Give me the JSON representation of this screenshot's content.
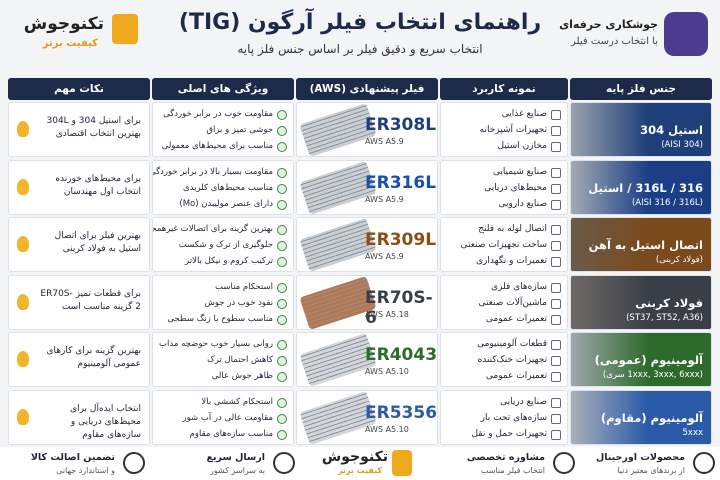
{
  "header": {
    "brand": {
      "name": "تکنوجوش",
      "slogan": "کیفیت برتر"
    },
    "title": "راهنمای انتخاب فیلر آرگون (TIG)",
    "subtitle": "انتخاب سریع و دقیق فیلر بر اساس جنس فلز پایه",
    "badge": {
      "title": "جوشکاری حرفه‌ای",
      "subtitle": "با انتخاب درست فیلر"
    }
  },
  "table": {
    "columns": [
      "جنس فلز پایه",
      "نمونه کاربرد",
      "فیلر پیشنهادی (AWS)",
      "ویژگی های اصلی",
      "نکات مهم"
    ],
    "rows": [
      {
        "base": "استیل 304",
        "base_note": "(AISI 304)",
        "applications": [
          "صنایع غذایی",
          "تجهیزات آشپزخانه",
          "مخازن استیل"
        ],
        "filler": "ER308L",
        "standard": "AWS A5.9",
        "features": [
          "مقاومت خوب در برابر خوردگی",
          "جوشی تمیز و براق",
          "مناسب برای محیط‌های معمولی"
        ],
        "tip": "برای استیل 304 و 304L بهترین انتخاب اقتصادی"
      },
      {
        "base": "316 / 316L / استیل",
        "base_note": "(AISI 316 / 316L)",
        "applications": [
          "صنایع شیمیایی",
          "محیط‌های دریایی",
          "صنایع دارویی"
        ],
        "filler": "ER316L",
        "standard": "AWS A5.9",
        "features": [
          "مقاومت بسیار بالا در برابر خوردگی",
          "مناسب محیط‌های کلریدی",
          "دارای عنصر مولیبدن (Mo)"
        ],
        "tip": "برای محیط‌های خورنده انتخاب اول مهندسان"
      },
      {
        "base": "اتصال استیل به آهن",
        "base_note": "(فولاد کربنی)",
        "applications": [
          "اتصال لوله به فلنج",
          "ساخت تجهیزات صنعتی",
          "تعمیرات و نگهداری"
        ],
        "filler": "ER309L",
        "standard": "AWS A5.9",
        "features": [
          "بهترین گزینه برای اتصالات غیرهمجنس",
          "جلوگیری از ترک و شکست",
          "ترکیب کروم و نیکل بالاتر"
        ],
        "tip": "بهترین فیلر برای اتصال استیل به فولاد کربنی"
      },
      {
        "base": "فولاد کربنی",
        "base_note": "(ST37, ST52, A36)",
        "applications": [
          "سازه‌های فلزی",
          "ماشین‌آلات صنعتی",
          "تعمیرات عمومی"
        ],
        "filler": "ER70S-6",
        "standard": "AWS A5.18",
        "features": [
          "استحکام مناسب",
          "نفوذ خوب در جوش",
          "مناسب سطوح با زنگ سطحی"
        ],
        "tip": "برای قطعات تمیز ER70S-2 گزینه مناسب است"
      },
      {
        "base": "آلومینیوم (عمومی)",
        "base_note": "(1xxx, 3xxx, 6xxx سری)",
        "applications": [
          "قطعات آلومینیومی",
          "تجهیزات خنک‌کننده",
          "تعمیرات عمومی"
        ],
        "filler": "ER4043",
        "standard": "AWS A5.10",
        "features": [
          "روانی بسیار خوب حوضچه مذاب",
          "کاهش احتمال ترک",
          "ظاهر جوش عالی"
        ],
        "tip": "بهترین گزینه برای کارهای عمومی آلومینیوم"
      },
      {
        "base": "آلومینیوم (مقاوم)",
        "base_note": "5xxx",
        "applications": [
          "صنایع دریایی",
          "سازه‌های تحت بار",
          "تجهیزات حمل و نقل"
        ],
        "filler": "ER5356",
        "standard": "AWS A5.10",
        "features": [
          "استحکام کششی بالا",
          "مقاومت عالی در آب شور",
          "مناسب سازه‌های مقاوم"
        ],
        "tip": "انتخاب ایده‌آل برای محیط‌های دریایی و سازه‌های مقاوم"
      }
    ]
  },
  "footer": {
    "items": [
      {
        "title": "محصولات اورجینال",
        "subtitle": "از برندهای معتبر دنیا"
      },
      {
        "title": "مشاوره تخصصی",
        "subtitle": "انتخاب فیلر مناسب"
      },
      {
        "title": "ارسال سریع",
        "subtitle": "به سراسر کشور"
      },
      {
        "title": "تضمین اصالت کالا",
        "subtitle": "و استاندارد جهانی"
      }
    ],
    "brand": {
      "name": "تکنوجوش",
      "slogan": "کیفیت برتر"
    }
  }
}
